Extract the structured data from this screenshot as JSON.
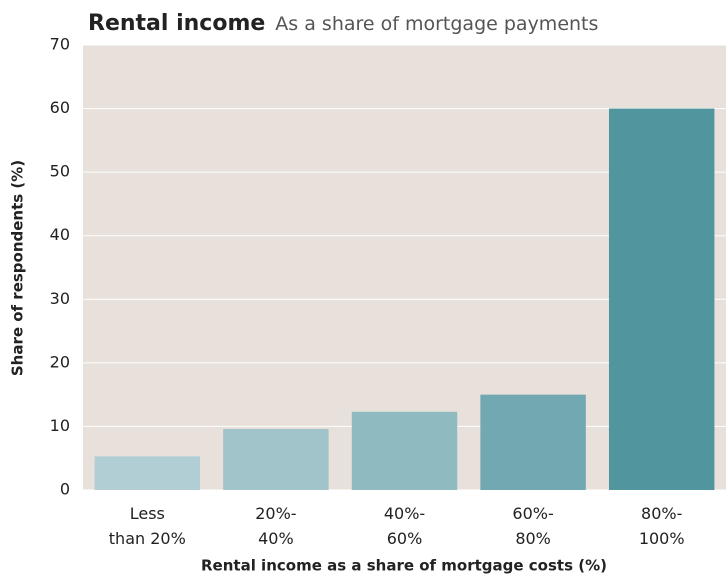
{
  "chart_data": {
    "type": "bar",
    "title": "Rental income",
    "subtitle": "As a share of mortgage payments",
    "x_label": "Rental income as a share of mortgage costs (%)",
    "y_label": "Share of respondents (%)",
    "categories": [
      [
        "Less",
        "than 20%"
      ],
      [
        "20%-",
        "40%"
      ],
      [
        "40%-",
        "60%"
      ],
      [
        "60%-",
        "80%"
      ],
      [
        "80%-",
        "100%"
      ]
    ],
    "values": [
      5.3,
      9.6,
      12.3,
      15,
      60
    ],
    "colors": [
      "#b1ced4",
      "#a0c4ca",
      "#8fbac0",
      "#71a8b1",
      "#51959e"
    ],
    "ylim": [
      0,
      70
    ],
    "yticks": [
      0,
      10,
      20,
      30,
      40,
      50,
      60,
      70
    ],
    "grid": true
  }
}
